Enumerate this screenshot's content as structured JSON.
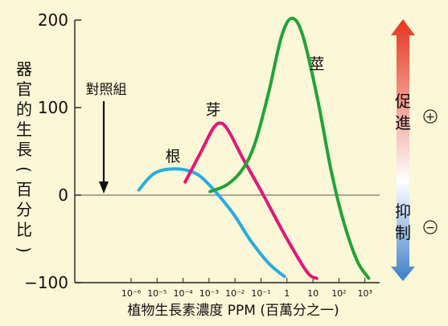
{
  "chart_data": {
    "type": "line",
    "xlabel": "植物生長素濃度 PPM (百萬分之一)",
    "ylabel": "器官的生長(百分比)",
    "x_scale": "log",
    "x_ticks": [
      {
        "exp": -6,
        "label": "10⁻⁶"
      },
      {
        "exp": -5,
        "label": "10⁻⁵"
      },
      {
        "exp": -4,
        "label": "10⁻⁴"
      },
      {
        "exp": -3,
        "label": "10⁻³"
      },
      {
        "exp": -2,
        "label": "10⁻²"
      },
      {
        "exp": -1,
        "label": "10⁻¹"
      },
      {
        "exp": 0,
        "label": "1"
      },
      {
        "exp": 1,
        "label": "10"
      },
      {
        "exp": 2,
        "label": "10²"
      },
      {
        "exp": 3,
        "label": "10³"
      }
    ],
    "ylim": [
      -100,
      200
    ],
    "y_ticks": [
      {
        "value": 200,
        "label": "200"
      },
      {
        "value": 100,
        "label": "100"
      },
      {
        "value": 0,
        "label": "0"
      },
      {
        "value": -100,
        "label": "−100"
      }
    ],
    "control_label": "對照組",
    "series": [
      {
        "name": "根",
        "color": "#29abe2",
        "points": [
          [
            2e-06,
            6
          ],
          [
            8e-06,
            25
          ],
          [
            5e-05,
            30
          ],
          [
            0.0003,
            25
          ],
          [
            0.001,
            12
          ],
          [
            0.003,
            -4
          ],
          [
            0.01,
            -24
          ],
          [
            0.04,
            -52
          ],
          [
            0.2,
            -78
          ],
          [
            0.8,
            -93
          ]
        ]
      },
      {
        "name": "芽",
        "color": "#e0187a",
        "points": [
          [
            0.00012,
            15
          ],
          [
            0.0005,
            50
          ],
          [
            0.0015,
            77
          ],
          [
            0.003,
            82
          ],
          [
            0.006,
            72
          ],
          [
            0.02,
            42
          ],
          [
            0.1,
            5
          ],
          [
            1,
            -50
          ],
          [
            6,
            -88
          ],
          [
            14,
            -95
          ]
        ]
      },
      {
        "name": "莖",
        "color": "#21a33a",
        "points": [
          [
            0.0011,
            4
          ],
          [
            0.005,
            12
          ],
          [
            0.02,
            30
          ],
          [
            0.06,
            60
          ],
          [
            0.2,
            118
          ],
          [
            0.6,
            180
          ],
          [
            1.5,
            202
          ],
          [
            4,
            183
          ],
          [
            15,
            110
          ],
          [
            50,
            28
          ],
          [
            150,
            -30
          ],
          [
            500,
            -75
          ],
          [
            1400,
            -95
          ]
        ]
      }
    ]
  },
  "side_scale": {
    "promote_label": "促進",
    "inhibit_label": "抑制",
    "plus_symbol": "+",
    "minus_symbol": "−",
    "top_color": "#e6341d",
    "mid_color": "#ffffff",
    "bottom_color": "#3a7ec9"
  }
}
